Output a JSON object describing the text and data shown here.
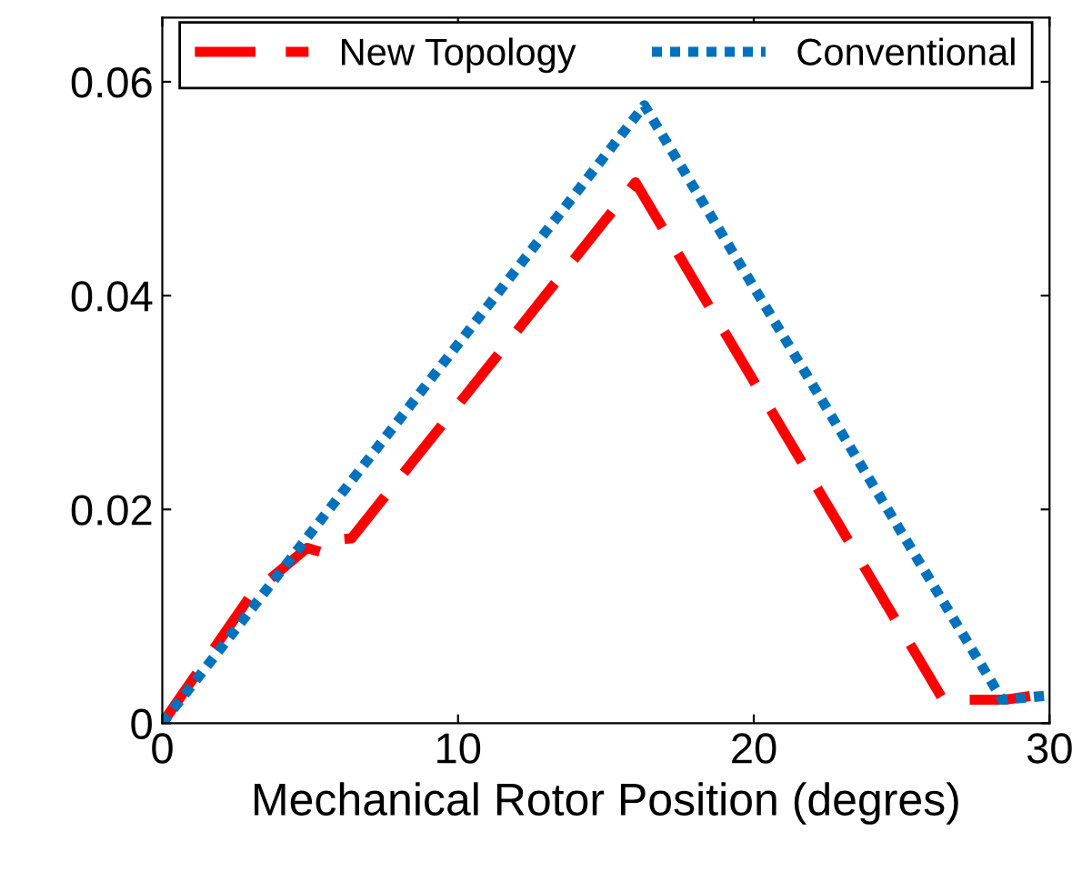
{
  "chart_data": {
    "type": "line",
    "xlabel": "Mechanical Rotor Position (degres)",
    "xlim": [
      0,
      30
    ],
    "xticks": [
      0,
      10,
      20,
      30
    ],
    "ylim": [
      0,
      0.066
    ],
    "yticks": [
      0,
      0.02,
      0.04,
      0.06
    ],
    "legend": "top",
    "grid": false,
    "series": [
      {
        "name": "New Topology",
        "color": "#ff0000",
        "line_style": "dashed",
        "x": [
          0,
          1,
          3,
          4.9,
          5.5,
          6.0,
          6.4,
          16.0,
          26.4,
          28.5,
          30
        ],
        "values": [
          0,
          0.004,
          0.012,
          0.0164,
          0.0159,
          0.0172,
          0.0173,
          0.0506,
          0.0022,
          0.0022,
          0.0028
        ]
      },
      {
        "name": "Conventional",
        "color": "#0072bd",
        "line_style": "dotted",
        "x": [
          0,
          16.3,
          28.4,
          30
        ],
        "values": [
          0,
          0.0578,
          0.0022,
          0.0026
        ]
      }
    ]
  }
}
